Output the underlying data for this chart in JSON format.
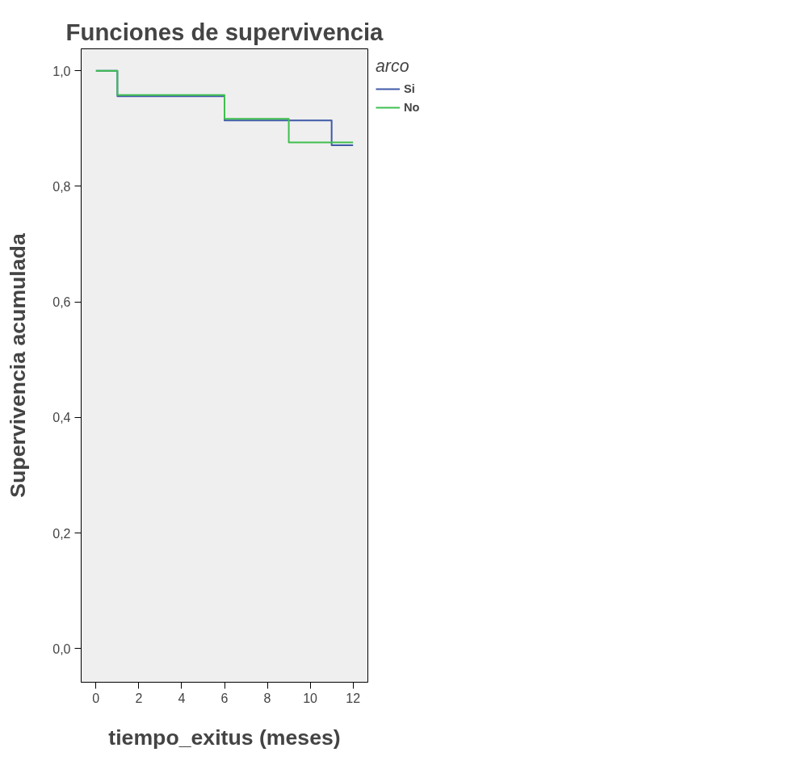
{
  "chart_data": {
    "type": "step",
    "title": "Funciones de supervivencia",
    "xlabel": "tiempo_exitus (meses)",
    "ylabel": "Supervivencia acumulada",
    "legend_title": "arco",
    "legend": "top right",
    "series": [
      {
        "name": "Si",
        "color": "#3e59a8",
        "x": [
          0,
          1,
          6,
          11,
          12
        ],
        "values": [
          1.0,
          0.956,
          0.914,
          0.871,
          0.871
        ]
      },
      {
        "name": "No",
        "color": "#3fbf4f",
        "x": [
          0,
          1,
          6,
          9,
          12
        ],
        "values": [
          1.0,
          0.958,
          0.917,
          0.876,
          0.876
        ]
      }
    ],
    "xlim": [
      -0.69,
      12.69
    ],
    "ylim": [
      -0.058,
      1.038
    ],
    "xticks": [
      0,
      2,
      4,
      6,
      8,
      10,
      12
    ],
    "yticks": [
      {
        "value": 0.0,
        "label": "0,0"
      },
      {
        "value": 0.2,
        "label": "0,2"
      },
      {
        "value": 0.4,
        "label": "0,4"
      },
      {
        "value": 0.6,
        "label": "0,6"
      },
      {
        "value": 0.8,
        "label": "0,8"
      },
      {
        "value": 1.0,
        "label": "1,0"
      }
    ],
    "grid": false
  }
}
